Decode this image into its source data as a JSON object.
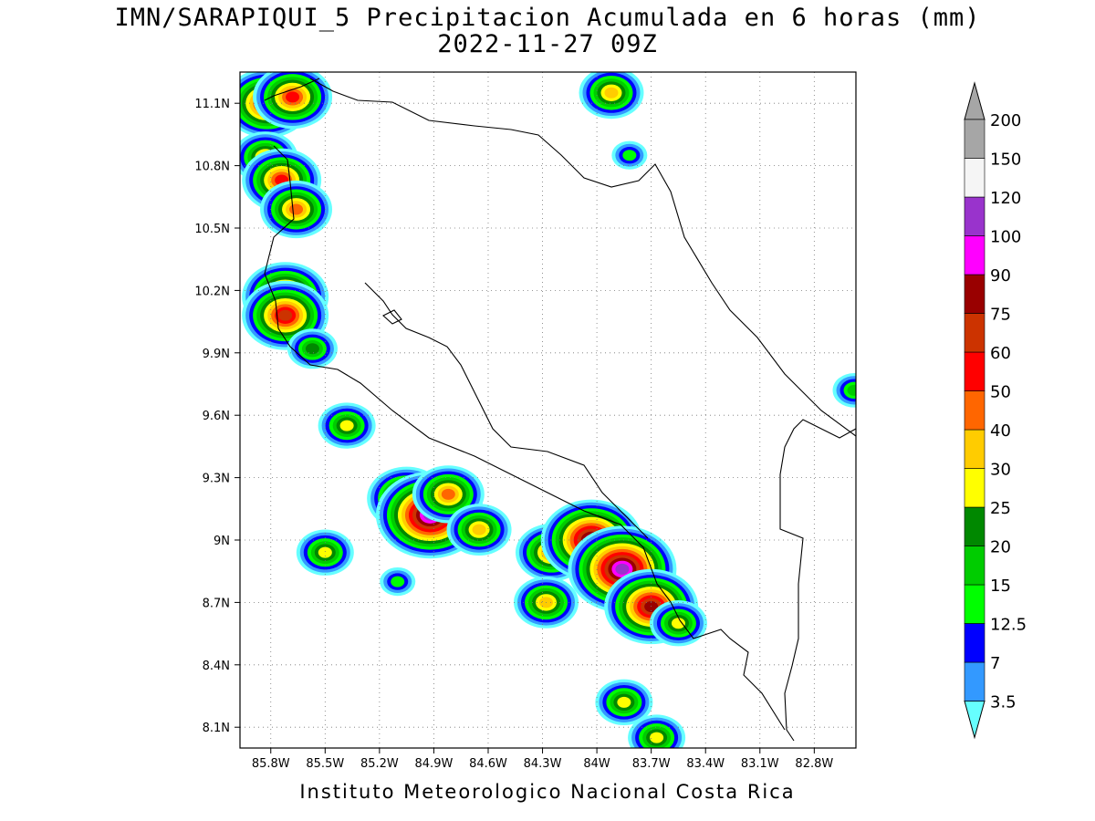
{
  "title": {
    "line1": "IMN/SARAPIQUI_5 Precipitacion Acumulada en 6 horas (mm)",
    "line2": "2022-11-27 09Z"
  },
  "footer": "Instituto Meteorologico Nacional Costa Rica",
  "map": {
    "lon_range": [
      -85.97,
      -82.57
    ],
    "lat_range": [
      8.0,
      11.25
    ],
    "lon_ticks": [
      {
        "value": -85.8,
        "label": "85.8W"
      },
      {
        "value": -85.5,
        "label": "85.5W"
      },
      {
        "value": -85.2,
        "label": "85.2W"
      },
      {
        "value": -84.9,
        "label": "84.9W"
      },
      {
        "value": -84.6,
        "label": "84.6W"
      },
      {
        "value": -84.3,
        "label": "84.3W"
      },
      {
        "value": -84.0,
        "label": "84W"
      },
      {
        "value": -83.7,
        "label": "83.7W"
      },
      {
        "value": -83.4,
        "label": "83.4W"
      },
      {
        "value": -83.1,
        "label": "83.1W"
      },
      {
        "value": -82.8,
        "label": "82.8W"
      }
    ],
    "lat_ticks": [
      {
        "value": 11.1,
        "label": "11.1N"
      },
      {
        "value": 10.8,
        "label": "10.8N"
      },
      {
        "value": 10.5,
        "label": "10.5N"
      },
      {
        "value": 10.2,
        "label": "10.2N"
      },
      {
        "value": 9.9,
        "label": "9.9N"
      },
      {
        "value": 9.6,
        "label": "9.6N"
      },
      {
        "value": 9.3,
        "label": "9.3N"
      },
      {
        "value": 9.0,
        "label": "9N"
      },
      {
        "value": 8.7,
        "label": "8.7N"
      },
      {
        "value": 8.4,
        "label": "8.4N"
      },
      {
        "value": 8.1,
        "label": "8.1N"
      }
    ],
    "grid": "dotted"
  },
  "colorbar": {
    "labels": [
      "3.5",
      "7",
      "12.5",
      "15",
      "20",
      "25",
      "30",
      "40",
      "50",
      "60",
      "75",
      "90",
      "100",
      "120",
      "150",
      "200"
    ],
    "colors": [
      "#66ffff",
      "#3399ff",
      "#0000ff",
      "#00ff00",
      "#00cc00",
      "#008800",
      "#ffff00",
      "#ffcc00",
      "#ff6600",
      "#ff0000",
      "#cc3300",
      "#990000",
      "#ff00ff",
      "#9933cc",
      "#f5f5f5",
      "#a6a6a6"
    ]
  },
  "precip_cells": [
    {
      "lon": -85.82,
      "lat": 11.1,
      "level": 10
    },
    {
      "lon": -85.68,
      "lat": 11.13,
      "level": 9
    },
    {
      "lon": -85.83,
      "lat": 10.84,
      "level": 7
    },
    {
      "lon": -85.74,
      "lat": 10.73,
      "level": 9
    },
    {
      "lon": -85.66,
      "lat": 10.59,
      "level": 8
    },
    {
      "lon": -85.72,
      "lat": 10.17,
      "level": 10
    },
    {
      "lon": -85.72,
      "lat": 10.08,
      "level": 10
    },
    {
      "lon": -85.57,
      "lat": 9.92,
      "level": 5
    },
    {
      "lon": -85.38,
      "lat": 9.55,
      "level": 6
    },
    {
      "lon": -85.05,
      "lat": 9.2,
      "level": 9
    },
    {
      "lon": -84.92,
      "lat": 9.12,
      "level": 13
    },
    {
      "lon": -84.82,
      "lat": 9.22,
      "level": 8
    },
    {
      "lon": -84.65,
      "lat": 9.05,
      "level": 7
    },
    {
      "lon": -84.25,
      "lat": 8.94,
      "level": 8
    },
    {
      "lon": -84.03,
      "lat": 9.0,
      "level": 12
    },
    {
      "lon": -83.86,
      "lat": 8.86,
      "level": 13
    },
    {
      "lon": -83.7,
      "lat": 8.68,
      "level": 11
    },
    {
      "lon": -84.28,
      "lat": 8.7,
      "level": 7
    },
    {
      "lon": -83.55,
      "lat": 8.6,
      "level": 6
    },
    {
      "lon": -83.85,
      "lat": 8.22,
      "level": 6
    },
    {
      "lon": -83.67,
      "lat": 8.05,
      "level": 6
    },
    {
      "lon": -83.92,
      "lat": 11.15,
      "level": 7
    },
    {
      "lon": -83.82,
      "lat": 10.85,
      "level": 3
    },
    {
      "lon": -85.5,
      "lat": 8.94,
      "level": 6
    },
    {
      "lon": -85.1,
      "lat": 8.8,
      "level": 3
    },
    {
      "lon": -82.58,
      "lat": 9.72,
      "level": 4
    }
  ]
}
